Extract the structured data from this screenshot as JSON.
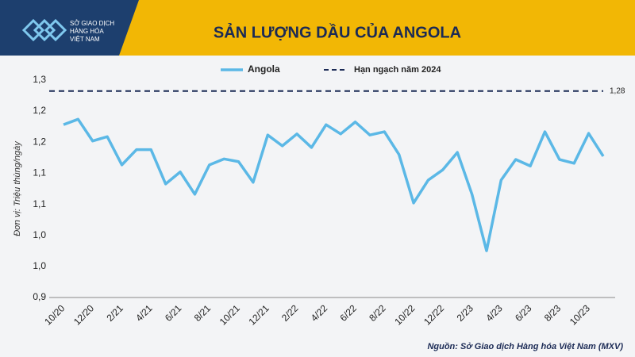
{
  "logo": {
    "lines": [
      "SỞ GIAO DỊCH",
      "HÀNG HÓA",
      "VIỆT NAM"
    ]
  },
  "chart_data": {
    "type": "line",
    "title": "SẢN LƯỢNG DẦU CỦA ANGOLA",
    "y_label": "Đơn vị: Triệu thùng/ngày",
    "source": "Nguồn: Sở Giao dịch Hàng hóa Việt Nam (MXV)",
    "categories": [
      "10/20",
      null,
      "12/20",
      null,
      "2/21",
      null,
      "4/21",
      null,
      "6/21",
      null,
      "8/21",
      null,
      "10/21",
      null,
      "12/21",
      null,
      "2/22",
      null,
      "4/22",
      null,
      "6/22",
      null,
      "8/22",
      null,
      "10/22",
      null,
      "12/22",
      null,
      "2/23",
      null,
      "4/23",
      null,
      "6/23",
      null,
      "8/23",
      null,
      "10/23",
      null
    ],
    "series": [
      {
        "name": "Angola",
        "color": "#5bb8e6",
        "values": [
          1.218,
          1.228,
          1.188,
          1.196,
          1.144,
          1.172,
          1.172,
          1.109,
          1.131,
          1.09,
          1.144,
          1.155,
          1.15,
          1.112,
          1.199,
          1.179,
          1.201,
          1.176,
          1.218,
          1.201,
          1.223,
          1.199,
          1.205,
          1.163,
          1.074,
          1.116,
          1.135,
          1.167,
          1.09,
          0.986,
          1.116,
          1.154,
          1.142,
          1.205,
          1.154,
          1.147,
          1.202,
          1.16
        ]
      }
    ],
    "reference_line": {
      "name": "Hạn ngạch năm 2024",
      "value": 1.28,
      "label": "1,28",
      "color": "#1b2a55"
    },
    "ylim": [
      0.9,
      1.3
    ],
    "yticks": [
      {
        "value": 0.9,
        "label": "0,9"
      },
      {
        "value": 0.957,
        "label": "1,0"
      },
      {
        "value": 1.014,
        "label": "1,0"
      },
      {
        "value": 1.071,
        "label": "1,1"
      },
      {
        "value": 1.129,
        "label": "1,1"
      },
      {
        "value": 1.186,
        "label": "1,2"
      },
      {
        "value": 1.243,
        "label": "1,2"
      },
      {
        "value": 1.3,
        "label": "1,3"
      }
    ],
    "grid": false
  }
}
